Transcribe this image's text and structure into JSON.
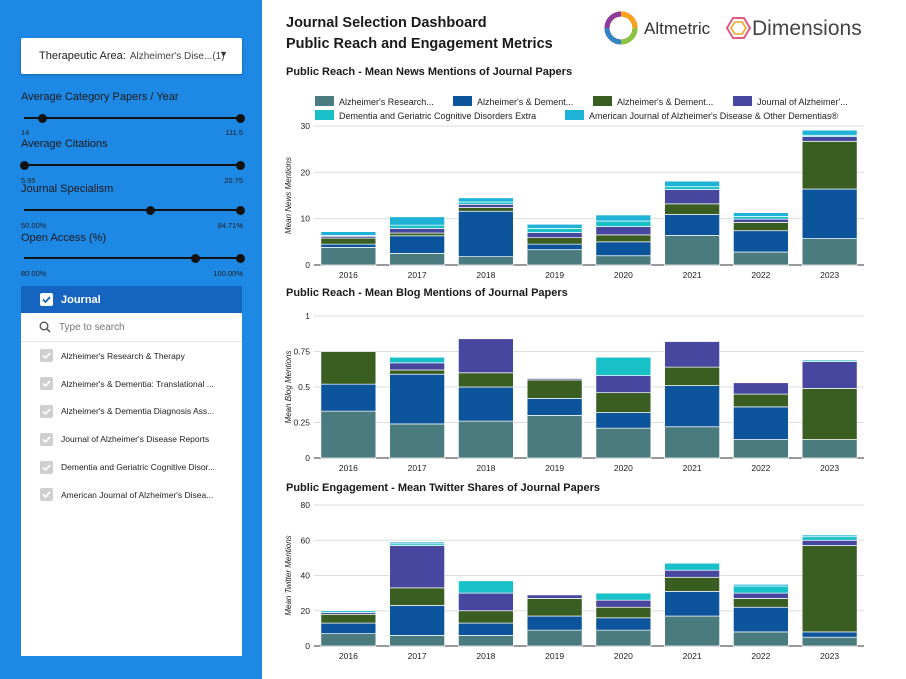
{
  "sidebar": {
    "dropdown": {
      "label": "Therapeutic Area:",
      "value": "Alzheimer's Dise...",
      "count": "(1)"
    },
    "sliders": [
      {
        "title": "Average Category Papers / Year",
        "min": "14",
        "max": "111.5",
        "low_fraction": 0.085,
        "high_fraction": 1.0
      },
      {
        "title": "Average Citations",
        "min": "5.95",
        "max": "20.75",
        "low_fraction": 0.0,
        "high_fraction": 1.0
      },
      {
        "title": "Journal Specialism",
        "min": "50.00%",
        "max": "84.71%",
        "low_fraction": 0.585,
        "high_fraction": 1.0
      },
      {
        "title": "Open Access (%)",
        "min": "80.00%",
        "max": "100.00%",
        "low_fraction": 0.795,
        "high_fraction": 1.0
      }
    ],
    "journal_list": {
      "header": "Journal",
      "search_placeholder": "Type to search",
      "items": [
        "Alzheimer's Research & Therapy",
        "Alzheimer's & Dementia: Translational ...",
        "Alzheimer's & Dementia Diagnosis Ass...",
        "Journal of Alzheimer's Disease Reports",
        "Dementia and Geriatric Cognitive Disor...",
        "American Journal of Alzheimer's Disea..."
      ]
    }
  },
  "header": {
    "title_line1": "Journal Selection Dashboard",
    "title_line2": "Public Reach and Engagement Metrics",
    "logo1": "Altmetric",
    "logo2": "Dimensions"
  },
  "icons": {
    "filter_caret": "caret-down-icon",
    "check": "checkmark-icon",
    "search": "magnifier-icon"
  },
  "colors": {
    "sidebar_bg": "#1e88e5",
    "journal_header_bg": "#1565c0",
    "series": [
      "#4a7b7f",
      "#0c549c",
      "#3a5e22",
      "#4747a0",
      "#18c0c8",
      "#1eb3d6"
    ]
  },
  "legend_labels": [
    "Alzheimer's Research...",
    "Alzheimer's & Dement...",
    "Alzheimer's & Dement...",
    "Journal of Alzheimer'...",
    "Dementia and Geriatric Cognitive Disorders Extra",
    "American Journal of Alzheimer's Disease & Other Dementias®"
  ],
  "chart_data": [
    {
      "type": "bar",
      "stacked": true,
      "title": "Public Reach - Mean News Mentions of Journal Papers",
      "ylabel": "Mean News Mentions",
      "ylim": [
        0,
        30
      ],
      "yticks": [
        "0",
        "10",
        "20",
        "30"
      ],
      "categories": [
        "2016",
        "2017",
        "2018",
        "2019",
        "2020",
        "2021",
        "2022",
        "2023"
      ],
      "series": [
        {
          "name": "Alzheimer's Research...",
          "values": [
            3.8,
            2.5,
            1.8,
            3.3,
            2.0,
            6.4,
            2.8,
            5.7
          ]
        },
        {
          "name": "Alzheimer's & Dement...",
          "values": [
            0.7,
            3.8,
            9.8,
            1.2,
            3.0,
            4.5,
            4.6,
            10.7
          ]
        },
        {
          "name": "Alzheimer's & Dement...",
          "values": [
            1.3,
            0.6,
            0.8,
            1.4,
            1.5,
            2.3,
            1.8,
            10.3
          ]
        },
        {
          "name": "Journal of Alzheimer'...",
          "values": [
            0.4,
            1.0,
            0.7,
            1.1,
            1.8,
            3.1,
            0.7,
            1.0
          ]
        },
        {
          "name": "Dementia and Geriatric Cognitive Disorders Extra",
          "values": [
            0.2,
            0.7,
            0.5,
            0.9,
            1.2,
            0.6,
            0.6,
            0.3
          ]
        },
        {
          "name": "American Journal of Alzheimer's Disease & Other Dementias®",
          "values": [
            0.8,
            1.8,
            0.9,
            0.9,
            1.3,
            1.2,
            0.8,
            1.1
          ]
        }
      ]
    },
    {
      "type": "bar",
      "stacked": true,
      "title": "Public Reach - Mean Blog Mentions of Journal Papers",
      "ylabel": "Mean Blog Mentions",
      "ylim": [
        0,
        1
      ],
      "yticks": [
        "0",
        "0.25",
        "0.5",
        "0.75",
        "1"
      ],
      "categories": [
        "2016",
        "2017",
        "2018",
        "2019",
        "2020",
        "2021",
        "2022",
        "2023"
      ],
      "series": [
        {
          "name": "Alzheimer's Research...",
          "values": [
            0.33,
            0.24,
            0.26,
            0.3,
            0.21,
            0.22,
            0.13,
            0.13
          ]
        },
        {
          "name": "Alzheimer's & Dement...",
          "values": [
            0.19,
            0.35,
            0.24,
            0.12,
            0.11,
            0.29,
            0.23,
            0.0
          ]
        },
        {
          "name": "Alzheimer's & Dement...",
          "values": [
            0.23,
            0.03,
            0.1,
            0.13,
            0.14,
            0.13,
            0.09,
            0.36
          ]
        },
        {
          "name": "Journal of Alzheimer'...",
          "values": [
            0.0,
            0.05,
            0.24,
            0.01,
            0.12,
            0.18,
            0.08,
            0.19
          ]
        },
        {
          "name": "Dementia and Geriatric Cognitive Disorders Extra",
          "values": [
            0.0,
            0.04,
            0.0,
            0.0,
            0.13,
            0.0,
            0.0,
            0.01
          ]
        },
        {
          "name": "American Journal of Alzheimer's Disease & Other Dementias®",
          "values": [
            0.0,
            0.0,
            0.0,
            0.0,
            0.0,
            0.0,
            0.0,
            0.0
          ]
        }
      ]
    },
    {
      "type": "bar",
      "stacked": true,
      "title": "Public Engagement - Mean Twitter Shares of Journal Papers",
      "ylabel": "Mean Twitter Mentions",
      "ylim": [
        0,
        80
      ],
      "yticks": [
        "0",
        "20",
        "40",
        "60",
        "80"
      ],
      "categories": [
        "2016",
        "2017",
        "2018",
        "2019",
        "2020",
        "2021",
        "2022",
        "2023"
      ],
      "series": [
        {
          "name": "Alzheimer's Research...",
          "values": [
            7,
            6,
            6,
            9,
            9,
            17,
            8,
            5
          ]
        },
        {
          "name": "Alzheimer's & Dement...",
          "values": [
            6,
            17,
            7,
            8,
            7,
            14,
            14,
            3
          ]
        },
        {
          "name": "Alzheimer's & Dement...",
          "values": [
            5,
            10,
            7,
            10,
            6,
            8,
            5,
            49
          ]
        },
        {
          "name": "Journal of Alzheimer'...",
          "values": [
            1,
            24,
            10,
            2,
            4,
            4,
            3,
            3
          ]
        },
        {
          "name": "Dementia and Geriatric Cognitive Disorders Extra",
          "values": [
            1,
            1,
            7,
            0,
            4,
            4,
            4,
            2
          ]
        },
        {
          "name": "American Journal of Alzheimer's Disease & Other Dementias®",
          "values": [
            0,
            1,
            0,
            0,
            0,
            0,
            1,
            1
          ]
        }
      ]
    }
  ]
}
